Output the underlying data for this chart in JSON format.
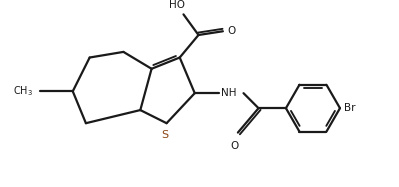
{
  "line_color": "#1a1a1a",
  "bg_color": "#ffffff",
  "line_width": 1.6,
  "figsize": [
    3.99,
    1.87
  ],
  "dpi": 100,
  "xlim": [
    0,
    10
  ],
  "ylim": [
    0,
    4.7
  ]
}
